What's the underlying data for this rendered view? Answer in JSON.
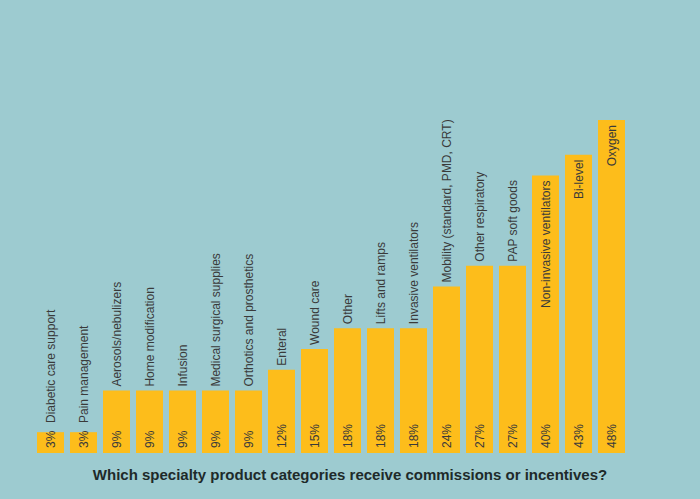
{
  "chart_data": {
    "type": "bar",
    "title": "Which specialty product categories receive commissions or incentives?",
    "categories": [
      "Diabetic care support",
      "Pain management",
      "Aerosols/nebulizers",
      "Home modification",
      "Infusion",
      "Medical surgical supplies",
      "Orthotics and prosthetics",
      "Enteral",
      "Wound care",
      "Other",
      "Lifts and ramps",
      "Invasive ventilators",
      "Mobility (standard, PMD, CRT)",
      "Other respiratory",
      "PAP soft goods",
      "Non-invasive ventilators",
      "Bi-level",
      "Oxygen"
    ],
    "values": [
      3,
      3,
      9,
      9,
      9,
      9,
      9,
      12,
      15,
      18,
      18,
      18,
      24,
      27,
      27,
      40,
      43,
      48
    ],
    "value_labels": [
      "3%",
      "3%",
      "9%",
      "9%",
      "9%",
      "9%",
      "9%",
      "12%",
      "15%",
      "18%",
      "18%",
      "18%",
      "24%",
      "27%",
      "27%",
      "40%",
      "43%",
      "48%"
    ],
    "color": "#fdbd1b",
    "ylim": [
      0,
      48
    ],
    "data_labels": true,
    "tick_labels": false
  }
}
